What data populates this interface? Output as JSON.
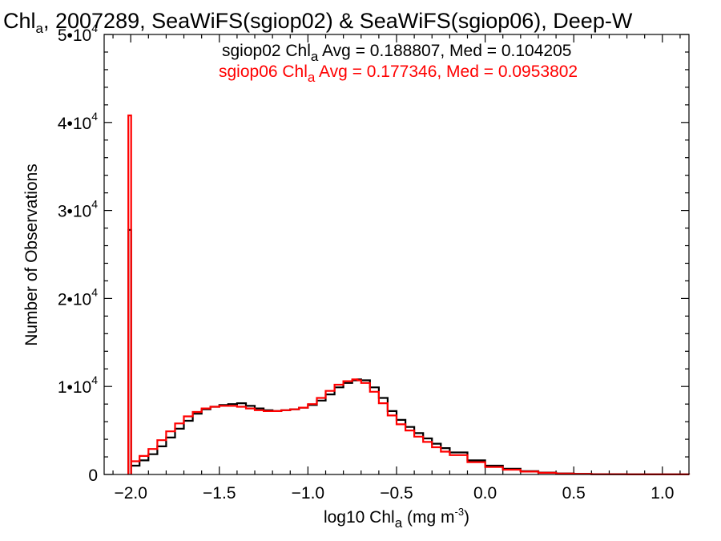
{
  "chart_data": {
    "type": "line",
    "title": {
      "prefix": "Chl",
      "sub": "a",
      "rest": ", 2007289, SeaWiFS(sgiop02) & SeaWiFS(sgiop06), Deep-W"
    },
    "xlabel": {
      "prefix": "log10 Chl",
      "sub": "a",
      "mid": " (mg m",
      "sup": "-3",
      "suffix": ")"
    },
    "ylabel": "Number of Observations",
    "xlim": [
      -2.15,
      1.15
    ],
    "ylim": [
      0,
      50000
    ],
    "x_ticks": [
      {
        "value": -2.0,
        "label": "−2.0"
      },
      {
        "value": -1.5,
        "label": "−1.5"
      },
      {
        "value": -1.0,
        "label": "−1.0"
      },
      {
        "value": -0.5,
        "label": "−0.5"
      },
      {
        "value": 0.0,
        "label": "0.0"
      },
      {
        "value": 0.5,
        "label": "0.5"
      },
      {
        "value": 1.0,
        "label": "1.0"
      }
    ],
    "y_ticks": [
      {
        "value": 0,
        "base": "0",
        "exp": ""
      },
      {
        "value": 10000,
        "base": "1•10",
        "exp": "4"
      },
      {
        "value": 20000,
        "base": "2•10",
        "exp": "4"
      },
      {
        "value": 30000,
        "base": "3•10",
        "exp": "4"
      },
      {
        "value": 40000,
        "base": "4•10",
        "exp": "4"
      },
      {
        "value": 50000,
        "base": "5•10",
        "exp": "4"
      }
    ],
    "legend": [
      {
        "prefix": "sgiop02 Chl",
        "sub": "a",
        "stats": " Avg = 0.188807, Med = 0.104205",
        "color": "#000000"
      },
      {
        "prefix": "sgiop06 Chl",
        "sub": "a",
        "stats": " Avg = 0.177346, Med = 0.0953802",
        "color": "#ff0000"
      }
    ],
    "series": [
      {
        "color": "#000000",
        "spike": {
          "x": -2.0,
          "y": 27800
        },
        "x": [
          -2.0,
          -1.95,
          -1.9,
          -1.85,
          -1.8,
          -1.75,
          -1.7,
          -1.65,
          -1.6,
          -1.55,
          -1.5,
          -1.45,
          -1.4,
          -1.35,
          -1.3,
          -1.25,
          -1.2,
          -1.15,
          -1.1,
          -1.05,
          -1.0,
          -0.95,
          -0.9,
          -0.85,
          -0.8,
          -0.75,
          -0.72,
          -0.7,
          -0.65,
          -0.6,
          -0.55,
          -0.5,
          -0.45,
          -0.4,
          -0.35,
          -0.3,
          -0.25,
          -0.2,
          -0.1,
          0.0,
          0.1,
          0.2,
          0.3,
          0.4,
          0.5,
          0.6,
          0.8,
          1.0,
          1.15
        ],
        "y": [
          1000,
          1600,
          2300,
          3200,
          4200,
          5200,
          6100,
          6900,
          7400,
          7700,
          7900,
          8000,
          8100,
          7800,
          7500,
          7300,
          7200,
          7300,
          7400,
          7600,
          7900,
          8400,
          9100,
          9900,
          10400,
          10700,
          10800,
          10700,
          9900,
          8700,
          7200,
          6200,
          5400,
          4700,
          4100,
          3500,
          3000,
          2500,
          1600,
          1000,
          650,
          380,
          220,
          120,
          70,
          40,
          15,
          5,
          0
        ]
      },
      {
        "color": "#ff0000",
        "spike": {
          "x": -2.0,
          "y": 40800
        },
        "x": [
          -2.0,
          -1.95,
          -1.9,
          -1.85,
          -1.8,
          -1.75,
          -1.7,
          -1.65,
          -1.6,
          -1.55,
          -1.5,
          -1.45,
          -1.4,
          -1.35,
          -1.3,
          -1.25,
          -1.2,
          -1.15,
          -1.1,
          -1.05,
          -1.0,
          -0.95,
          -0.9,
          -0.85,
          -0.8,
          -0.75,
          -0.72,
          -0.7,
          -0.65,
          -0.6,
          -0.55,
          -0.5,
          -0.45,
          -0.4,
          -0.35,
          -0.3,
          -0.25,
          -0.2,
          -0.1,
          0.0,
          0.1,
          0.2,
          0.3,
          0.4,
          0.5,
          0.6,
          0.8,
          1.0,
          1.15
        ],
        "y": [
          1500,
          2100,
          2900,
          3900,
          4900,
          5800,
          6600,
          7100,
          7500,
          7700,
          7800,
          7800,
          7700,
          7500,
          7300,
          7200,
          7200,
          7300,
          7400,
          7600,
          8000,
          8700,
          9500,
          10200,
          10600,
          10800,
          10700,
          10400,
          9400,
          8100,
          6700,
          5700,
          5000,
          4300,
          3700,
          3100,
          2600,
          2200,
          1400,
          850,
          550,
          330,
          190,
          100,
          55,
          30,
          10,
          5,
          0
        ]
      }
    ]
  }
}
